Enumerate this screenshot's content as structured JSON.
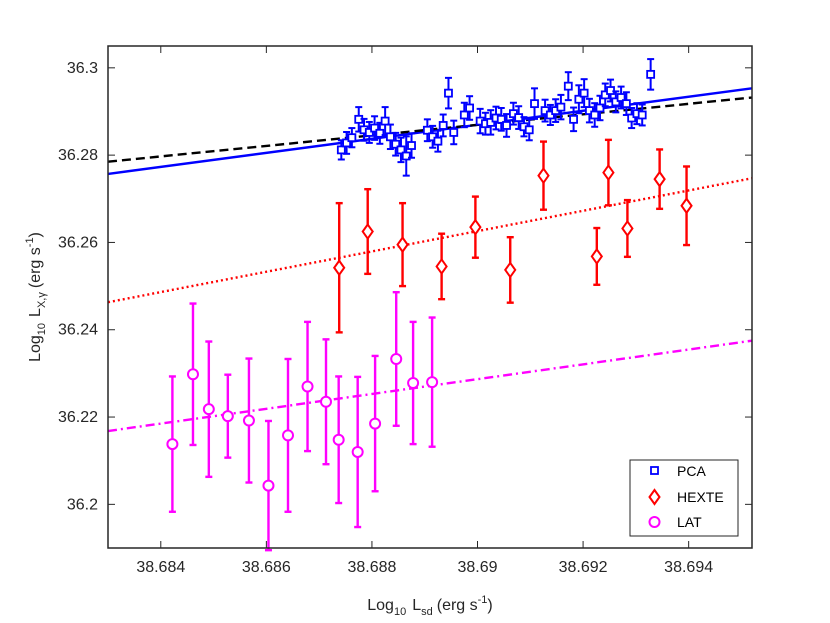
{
  "chart_data": {
    "type": "scatter",
    "title": "",
    "xlabel": {
      "base": "Log",
      "sub1": "10",
      "main": "L",
      "sub2": "sd",
      "unit": "(erg s",
      "sup": "-1",
      "close": ")"
    },
    "ylabel": {
      "base": "Log",
      "sub1": "10",
      "main": "L",
      "sub2": "X,γ",
      "unit": "(erg s",
      "sup": "-1",
      "close": ")"
    },
    "xlim": [
      38.683,
      38.6952
    ],
    "ylim": [
      36.19,
      36.305
    ],
    "xticks": [
      38.684,
      38.686,
      38.688,
      38.69,
      38.692,
      38.694
    ],
    "xtick_labels": [
      "38.684",
      "38.686",
      "38.688",
      "38.69",
      "38.692",
      "38.694"
    ],
    "yticks": [
      36.2,
      36.22,
      36.24,
      36.26,
      36.28,
      36.3
    ],
    "ytick_labels": [
      "36.2",
      "36.22",
      "36.24",
      "36.26",
      "36.28",
      "36.3"
    ],
    "grid": false,
    "legend_position": "bottom-right",
    "series": [
      {
        "name": "PCA",
        "color": "#0000ff",
        "marker": "square",
        "points": [
          [
            38.68742,
            36.2812,
            0.0022
          ],
          [
            38.68752,
            36.2828,
            0.0025
          ],
          [
            38.68762,
            36.284,
            0.0022
          ],
          [
            38.68775,
            36.2882,
            0.0028
          ],
          [
            38.68785,
            36.2858,
            0.0025
          ],
          [
            38.68795,
            36.2852,
            0.0024
          ],
          [
            38.68805,
            36.2862,
            0.0027
          ],
          [
            38.68815,
            36.285,
            0.0024
          ],
          [
            38.68825,
            36.2878,
            0.0032
          ],
          [
            38.68835,
            36.2842,
            0.0028
          ],
          [
            38.68845,
            36.2825,
            0.0026
          ],
          [
            38.68855,
            36.2812,
            0.0028
          ],
          [
            38.68865,
            36.2798,
            0.0045
          ],
          [
            38.68875,
            36.2822,
            0.0028
          ],
          [
            38.68905,
            36.2857,
            0.0025
          ],
          [
            38.68915,
            36.2842,
            0.0025
          ],
          [
            38.68925,
            36.2832,
            0.0024
          ],
          [
            38.68935,
            36.2868,
            0.0025
          ],
          [
            38.68945,
            36.2942,
            0.0035
          ],
          [
            38.68955,
            36.2852,
            0.0027
          ],
          [
            38.68975,
            36.2892,
            0.0028
          ],
          [
            38.68985,
            36.2908,
            0.0027
          ],
          [
            38.69005,
            36.2878,
            0.0028
          ],
          [
            38.69015,
            36.2872,
            0.0025
          ],
          [
            38.69025,
            36.2875,
            0.0028
          ],
          [
            38.69035,
            36.2885,
            0.0026
          ],
          [
            38.69045,
            36.2882,
            0.0026
          ],
          [
            38.69055,
            36.2868,
            0.0026
          ],
          [
            38.69068,
            36.2895,
            0.0025
          ],
          [
            38.69078,
            36.2886,
            0.0026
          ],
          [
            38.69088,
            36.2865,
            0.0022
          ],
          [
            38.69098,
            36.2858,
            0.0024
          ],
          [
            38.69108,
            36.2918,
            0.0035
          ],
          [
            38.69128,
            36.2902,
            0.0025
          ],
          [
            38.69138,
            36.2892,
            0.0023
          ],
          [
            38.69148,
            36.2902,
            0.0026
          ],
          [
            38.69158,
            36.291,
            0.0028
          ],
          [
            38.69172,
            36.2958,
            0.0032
          ],
          [
            38.69182,
            36.2882,
            0.0027
          ],
          [
            38.69192,
            36.2928,
            0.0032
          ],
          [
            38.69202,
            36.2942,
            0.0032
          ],
          [
            38.69212,
            36.2902,
            0.0027
          ],
          [
            38.69222,
            36.2892,
            0.0027
          ],
          [
            38.69232,
            36.2908,
            0.0028
          ],
          [
            38.69242,
            36.2938,
            0.0026
          ],
          [
            38.69252,
            36.2948,
            0.0025
          ],
          [
            38.69262,
            36.2922,
            0.0024
          ],
          [
            38.69272,
            36.2932,
            0.0025
          ],
          [
            38.69282,
            36.2918,
            0.0026
          ],
          [
            38.69292,
            36.2885,
            0.0023
          ],
          [
            38.69302,
            36.2895,
            0.0024
          ],
          [
            38.69312,
            36.2892,
            0.0024
          ],
          [
            38.69328,
            36.2985,
            0.0035
          ]
        ]
      },
      {
        "name": "HEXTE",
        "color": "#ff0000",
        "marker": "diamond",
        "points": [
          [
            38.68738,
            36.2542,
            0.0148
          ],
          [
            38.68792,
            36.2625,
            0.0097
          ],
          [
            38.68858,
            36.2595,
            0.0095
          ],
          [
            38.68932,
            36.2545,
            0.0075
          ],
          [
            38.68996,
            36.2635,
            0.007
          ],
          [
            38.69062,
            36.2537,
            0.0075
          ],
          [
            38.69125,
            36.2753,
            0.0078
          ],
          [
            38.69226,
            36.2568,
            0.0065
          ],
          [
            38.69248,
            36.276,
            0.0075
          ],
          [
            38.69284,
            36.2632,
            0.0065
          ],
          [
            38.69345,
            36.2745,
            0.0068
          ],
          [
            38.69396,
            36.2684,
            0.009
          ]
        ]
      },
      {
        "name": "LAT",
        "color": "#ff00ff",
        "marker": "circle",
        "points": [
          [
            38.68422,
            36.2138,
            0.0155
          ],
          [
            38.68461,
            36.2298,
            0.0162
          ],
          [
            38.68491,
            36.2218,
            0.0155
          ],
          [
            38.68527,
            36.2202,
            0.0095
          ],
          [
            38.68567,
            36.2192,
            0.0142
          ],
          [
            38.68604,
            36.2043,
            0.0148
          ],
          [
            38.68641,
            36.2158,
            0.0175
          ],
          [
            38.68678,
            36.227,
            0.0148
          ],
          [
            38.68713,
            36.2235,
            0.0143
          ],
          [
            38.68737,
            36.2148,
            0.0145
          ],
          [
            38.68773,
            36.212,
            0.0172
          ],
          [
            38.68806,
            36.2185,
            0.0155
          ],
          [
            38.68846,
            36.2333,
            0.0153
          ],
          [
            38.68878,
            36.2278,
            0.014
          ],
          [
            38.68914,
            36.228,
            0.0148
          ]
        ]
      }
    ],
    "fit_lines": [
      {
        "name": "PCA fit",
        "color": "#0000ff",
        "style": "solid",
        "x": [
          38.683,
          38.6952
        ],
        "y": [
          36.2757,
          36.2953
        ]
      },
      {
        "name": "PCA alt fit",
        "color": "#000000",
        "style": "dashed",
        "x": [
          38.683,
          38.6952
        ],
        "y": [
          36.2785,
          36.2932
        ]
      },
      {
        "name": "HEXTE fit",
        "color": "#ff0000",
        "style": "dotted",
        "x": [
          38.683,
          38.6952
        ],
        "y": [
          36.2463,
          36.2747
        ]
      },
      {
        "name": "LAT fit",
        "color": "#ff00ff",
        "style": "dashdot",
        "x": [
          38.683,
          38.6952
        ],
        "y": [
          36.2168,
          36.2375
        ]
      }
    ]
  }
}
